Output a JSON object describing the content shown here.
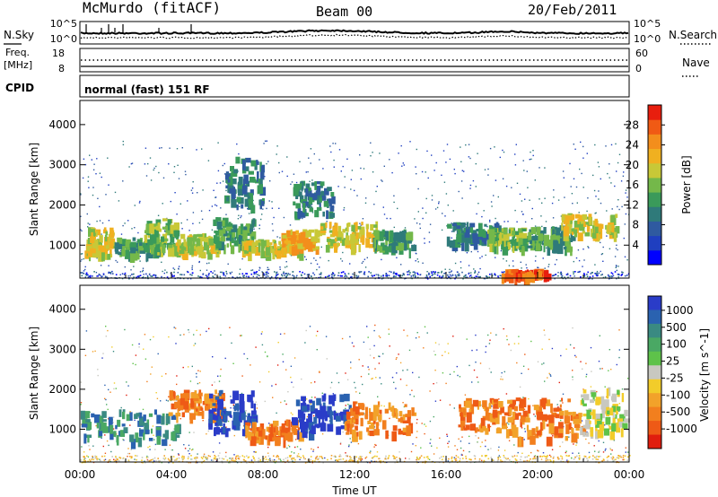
{
  "header": {
    "station": "McMurdo (fitACF)",
    "beam": "Beam 00",
    "date": "20/Feb/2011"
  },
  "panels": {
    "noise": {
      "left_label": "N.Sky",
      "right_label": "N.Search",
      "left_ticks": [
        "10^5",
        "10^0"
      ],
      "right_ticks": [
        "10^5",
        "10^0"
      ]
    },
    "freq": {
      "left_label_1": "Freq.",
      "left_label_2": "[MHz]",
      "right_label": "Nave",
      "left_ticks": [
        "18",
        "8"
      ],
      "right_ticks": [
        "60",
        "0"
      ]
    },
    "cpid": {
      "label": "CPID",
      "value": "normal (fast) 151 RF"
    }
  },
  "chart_data": [
    {
      "type": "heatmap",
      "title": "",
      "quantity": "Power",
      "ylabel": "Slant Range [km]",
      "xlabel": "",
      "ylim": [
        180,
        4600
      ],
      "yticks": [
        1000,
        2000,
        3000,
        4000
      ],
      "xlim": [
        0,
        24
      ],
      "colorbar": {
        "label": "Power [dB]",
        "range": [
          0,
          32
        ],
        "ticks": [
          4,
          8,
          12,
          16,
          20,
          24,
          28
        ],
        "colors": [
          "#0000ff",
          "#1f3fc0",
          "#2f5aa0",
          "#2f7a7a",
          "#3a9a5a",
          "#74b84a",
          "#c8c837",
          "#f0b020",
          "#f38e1c",
          "#f05a14",
          "#e81e0e"
        ]
      },
      "echo_bands": [
        {
          "t0": 0.2,
          "t1": 1.4,
          "r0": 780,
          "r1": 1450,
          "level": 18
        },
        {
          "t0": 1.5,
          "t1": 3.6,
          "r0": 800,
          "r1": 1200,
          "level": 14
        },
        {
          "t0": 2.8,
          "t1": 4.2,
          "r0": 900,
          "r1": 1700,
          "level": 16
        },
        {
          "t0": 4.0,
          "t1": 6.0,
          "r0": 820,
          "r1": 1300,
          "level": 20
        },
        {
          "t0": 5.8,
          "t1": 7.6,
          "r0": 1000,
          "r1": 1700,
          "level": 14
        },
        {
          "t0": 7.0,
          "t1": 9.6,
          "r0": 850,
          "r1": 1150,
          "level": 18
        },
        {
          "t0": 8.8,
          "t1": 10.4,
          "r0": 900,
          "r1": 1400,
          "level": 22
        },
        {
          "t0": 10.5,
          "t1": 13.0,
          "r0": 1000,
          "r1": 1600,
          "level": 18
        },
        {
          "t0": 12.8,
          "t1": 14.5,
          "r0": 900,
          "r1": 1400,
          "level": 12
        },
        {
          "t0": 16.0,
          "t1": 18.2,
          "r0": 1100,
          "r1": 1600,
          "level": 10
        },
        {
          "t0": 17.8,
          "t1": 19.4,
          "r0": 950,
          "r1": 1450,
          "level": 16
        },
        {
          "t0": 19.5,
          "t1": 21.5,
          "r0": 950,
          "r1": 1500,
          "level": 14
        },
        {
          "t0": 21.0,
          "t1": 23.4,
          "r0": 1300,
          "r1": 1800,
          "level": 18
        },
        {
          "t0": 18.4,
          "t1": 20.4,
          "r0": 240,
          "r1": 420,
          "level": 30
        },
        {
          "t0": 6.3,
          "t1": 8.0,
          "r0": 2000,
          "r1": 3200,
          "level": 8
        },
        {
          "t0": 9.3,
          "t1": 11.0,
          "r0": 1800,
          "r1": 2600,
          "level": 8
        }
      ]
    },
    {
      "type": "heatmap",
      "title": "",
      "quantity": "Velocity",
      "ylabel": "Slant Range [km]",
      "xlabel": "Time UT",
      "ylim": [
        180,
        4600
      ],
      "yticks": [
        1000,
        2000,
        3000,
        4000
      ],
      "xlim": [
        0,
        24
      ],
      "xticks": [
        "00:00",
        "04:00",
        "08:00",
        "12:00",
        "16:00",
        "20:00",
        "00:00"
      ],
      "colorbar": {
        "label": "Velocity [m s^-1]",
        "ticks": [
          "1000",
          "500",
          "100",
          "25",
          "-25",
          "-100",
          "-500",
          "-1000"
        ],
        "colors": [
          "#2a3cc8",
          "#2a62b0",
          "#3a8a82",
          "#4aa864",
          "#5ec24a",
          "#c8c8c0",
          "#f2cc2a",
          "#f2a22a",
          "#f27f1e",
          "#ee5a16",
          "#e01d0e"
        ]
      },
      "echo_bands": [
        {
          "t0": 0.0,
          "t1": 4.3,
          "r0": 750,
          "r1": 1500,
          "velocity": 300
        },
        {
          "t0": 3.8,
          "t1": 6.2,
          "r0": 1400,
          "r1": 2000,
          "velocity": -400
        },
        {
          "t0": 5.6,
          "t1": 7.6,
          "r0": 1000,
          "r1": 2000,
          "velocity": 800
        },
        {
          "t0": 7.2,
          "t1": 9.6,
          "r0": 780,
          "r1": 1250,
          "velocity": -400
        },
        {
          "t0": 9.2,
          "t1": 11.8,
          "r0": 950,
          "r1": 1900,
          "velocity": 800
        },
        {
          "t0": 11.5,
          "t1": 14.5,
          "r0": 900,
          "r1": 1700,
          "velocity": -450
        },
        {
          "t0": 16.5,
          "t1": 19.0,
          "r0": 1000,
          "r1": 1800,
          "velocity": -400
        },
        {
          "t0": 19.0,
          "t1": 22.0,
          "r0": 800,
          "r1": 1800,
          "velocity": -450
        },
        {
          "t0": 21.8,
          "t1": 23.8,
          "r0": 900,
          "r1": 2100,
          "velocity": 20
        }
      ]
    }
  ]
}
